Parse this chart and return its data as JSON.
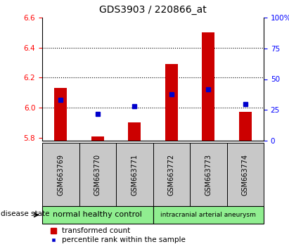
{
  "title": "GDS3903 / 220866_at",
  "samples": [
    "GSM663769",
    "GSM663770",
    "GSM663771",
    "GSM663772",
    "GSM663773",
    "GSM663774"
  ],
  "red_values": [
    6.13,
    5.81,
    5.9,
    6.29,
    6.5,
    5.97
  ],
  "blue_values_pct": [
    33,
    22,
    28,
    38,
    42,
    30
  ],
  "ymin": 5.78,
  "ymax": 6.6,
  "yticks": [
    5.8,
    6.0,
    6.2,
    6.4,
    6.6
  ],
  "right_yticks": [
    0,
    25,
    50,
    75,
    100
  ],
  "bar_width": 0.35,
  "bar_color": "#cc0000",
  "blue_color": "#0000cc",
  "group1_label": "normal healthy control",
  "group2_label": "intracranial arterial aneurysm",
  "group1_color": "#90ee90",
  "group2_color": "#90ee90",
  "gray_color": "#c8c8c8",
  "disease_state_label": "disease state",
  "legend1": "transformed count",
  "legend2": "percentile rank within the sample",
  "title_fontsize": 10,
  "tick_fontsize": 7.5,
  "label_fontsize": 8
}
